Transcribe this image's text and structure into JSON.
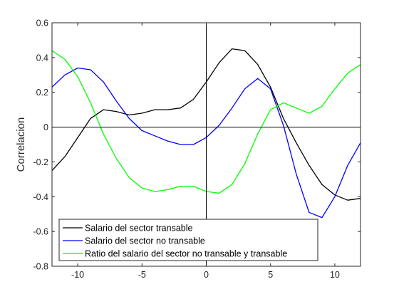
{
  "chart_data": {
    "type": "line",
    "title": "",
    "xlabel": "",
    "ylabel": "Correlacion",
    "xlim": [
      -12,
      12
    ],
    "ylim": [
      -0.8,
      0.6
    ],
    "xticks": [
      -10,
      -5,
      0,
      5,
      10
    ],
    "yticks": [
      -0.8,
      -0.6,
      -0.4,
      -0.2,
      0,
      0.2,
      0.4,
      0.6
    ],
    "ytick_labels": [
      "-0.8",
      "-0.6",
      "-0.4",
      "-0.2",
      "0",
      "0.2",
      "0.4",
      "0.6"
    ],
    "xtick_labels": [
      "-10",
      "-5",
      "0",
      "5",
      "10"
    ],
    "reference_lines": {
      "x": 0,
      "y": 0
    },
    "legend_position": "bottom-left",
    "x": [
      -12,
      -11,
      -10,
      -9,
      -8,
      -7,
      -6,
      -5,
      -4,
      -3,
      -2,
      -1,
      0,
      1,
      2,
      3,
      4,
      5,
      6,
      7,
      8,
      9,
      10,
      11,
      12
    ],
    "series": [
      {
        "name": "Salario del sector transable",
        "color": "#000000",
        "values": [
          -0.25,
          -0.17,
          -0.06,
          0.05,
          0.1,
          0.09,
          0.07,
          0.08,
          0.1,
          0.1,
          0.11,
          0.16,
          0.26,
          0.37,
          0.45,
          0.44,
          0.36,
          0.23,
          0.05,
          -0.09,
          -0.22,
          -0.33,
          -0.39,
          -0.42,
          -0.41
        ]
      },
      {
        "name": "Salario del sector no transable",
        "color": "#0000ff",
        "values": [
          0.23,
          0.3,
          0.34,
          0.33,
          0.26,
          0.15,
          0.05,
          -0.02,
          -0.05,
          -0.08,
          -0.1,
          -0.1,
          -0.06,
          0.01,
          0.11,
          0.22,
          0.28,
          0.22,
          0.01,
          -0.27,
          -0.49,
          -0.52,
          -0.4,
          -0.22,
          -0.09
        ]
      },
      {
        "name": "Ratio del salario del sector no transable y transable",
        "color": "#00ff00",
        "values": [
          0.44,
          0.39,
          0.29,
          0.14,
          -0.04,
          -0.18,
          -0.29,
          -0.35,
          -0.37,
          -0.36,
          -0.34,
          -0.34,
          -0.37,
          -0.38,
          -0.33,
          -0.21,
          -0.04,
          0.1,
          0.14,
          0.11,
          0.08,
          0.12,
          0.22,
          0.31,
          0.36
        ]
      }
    ]
  }
}
